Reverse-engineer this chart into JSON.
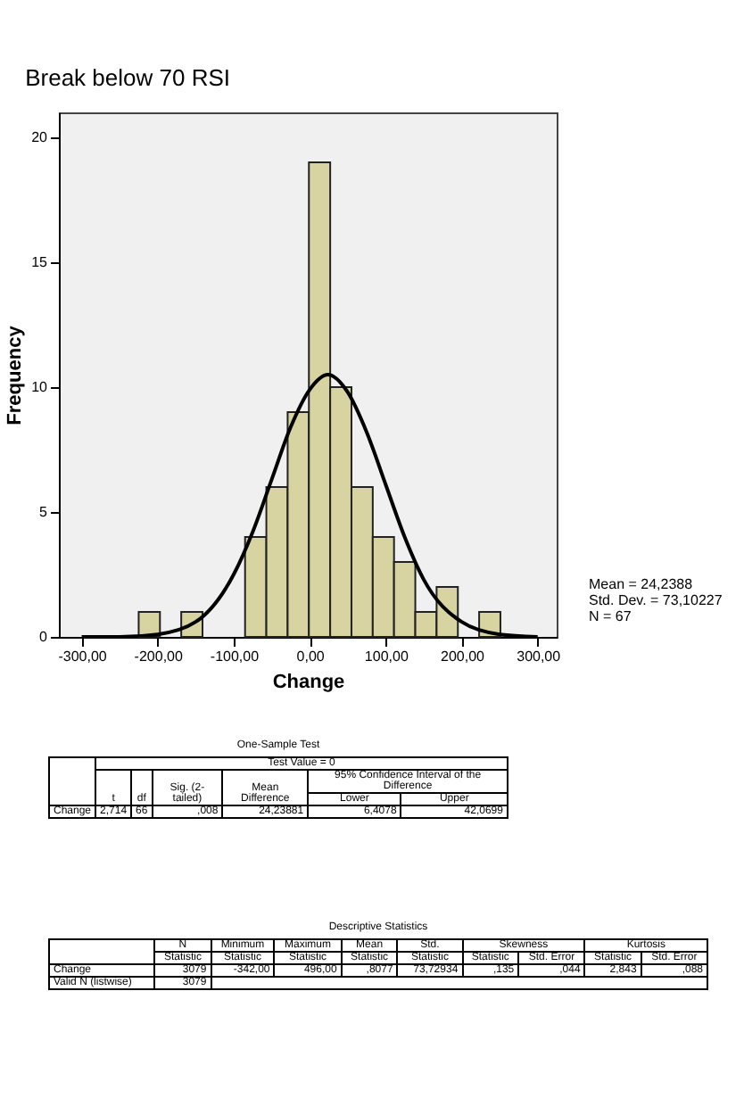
{
  "chart_data": [
    {
      "type": "histogram",
      "title": "Break below 70 RSI",
      "xlabel": "Change",
      "ylabel": "Frequency",
      "xlim": [
        -330,
        325
      ],
      "ylim": [
        0,
        21
      ],
      "xticks": [
        {
          "value": -300,
          "label": "-300,00"
        },
        {
          "value": -200,
          "label": "-200,00"
        },
        {
          "value": -100,
          "label": "-100,00"
        },
        {
          "value": 0,
          "label": "0,00"
        },
        {
          "value": 100,
          "label": "100,00"
        },
        {
          "value": 200,
          "label": "200,00"
        },
        {
          "value": 300,
          "label": "300,00"
        }
      ],
      "yticks": [
        0,
        5,
        10,
        15,
        20
      ],
      "series": [
        {
          "type": "histogram",
          "color": "#d8d4a2",
          "bins": [
            -225,
            -197,
            -169,
            -141,
            -113,
            -85,
            -57,
            -29,
            -1,
            27,
            55,
            83,
            111,
            139,
            167,
            195,
            223,
            251
          ],
          "values": [
            1,
            0,
            1,
            0,
            0,
            4,
            6,
            9,
            19,
            10,
            6,
            4,
            3,
            1,
            2,
            0,
            1
          ]
        },
        {
          "type": "line",
          "color": "#000000",
          "x": [
            -300,
            -250,
            -200,
            -150,
            -100,
            -75,
            -50,
            -25,
            0,
            24,
            50,
            75,
            100,
            125,
            150,
            200,
            250,
            300
          ],
          "values": [
            0,
            0,
            0.1,
            0.6,
            2.5,
            4.2,
            6.3,
            8.4,
            9.9,
            10.5,
            9.8,
            8.2,
            6.1,
            4,
            2.3,
            0.6,
            0.1,
            0
          ]
        }
      ],
      "annotations": [
        "Mean = 24,2388",
        "Std. Dev. = 73,10227",
        "N = 67"
      ]
    },
    {
      "type": "other",
      "title": "One-Sample Test",
      "annotations": [
        "Test Value = 0",
        "t",
        "df",
        "Sig. (2-tailed)",
        "Mean Difference",
        "95% Confidence Interval of the Difference",
        "Lower",
        "Upper",
        "Change",
        "2,714",
        "66",
        ",008",
        "24,23881",
        "6,4078",
        "42,0699"
      ]
    },
    {
      "type": "other",
      "title": "Descriptive Statistics",
      "annotations": [
        "N",
        "Minimum",
        "Maximum",
        "Mean",
        "Std.",
        "Skewness",
        "Kurtosis",
        "Statistic",
        "Statistic",
        "Statistic",
        "Statistic",
        "Statistic",
        "Statistic",
        "Std. Error",
        "Statistic",
        "Std. Error",
        "Change",
        "3079",
        "-342,00",
        "496,00",
        ",8077",
        "73,72934",
        ",135",
        ",044",
        "2,843",
        ",088",
        "Valid N (listwise)",
        "3079"
      ]
    }
  ]
}
